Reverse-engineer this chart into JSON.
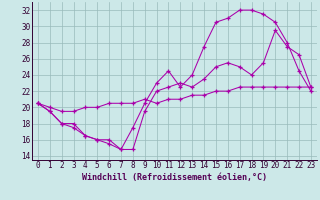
{
  "bg_color": "#cce8e8",
  "line_color": "#aa00aa",
  "xlim": [
    -0.5,
    23.5
  ],
  "ylim": [
    13.5,
    33.0
  ],
  "yticks": [
    14,
    16,
    18,
    20,
    22,
    24,
    26,
    28,
    30,
    32
  ],
  "xticks": [
    0,
    1,
    2,
    3,
    4,
    5,
    6,
    7,
    8,
    9,
    10,
    11,
    12,
    13,
    14,
    15,
    16,
    17,
    18,
    19,
    20,
    21,
    22,
    23
  ],
  "xlabel": "Windchill (Refroidissement éolien,°C)",
  "line1_x": [
    0,
    1,
    2,
    3,
    4,
    5,
    6,
    7,
    8,
    9,
    10,
    11,
    12,
    13,
    14,
    15,
    16,
    17,
    18,
    19,
    20,
    21,
    22,
    23
  ],
  "line1_y": [
    20.5,
    19.5,
    18.0,
    17.5,
    16.5,
    16.0,
    15.5,
    14.8,
    14.8,
    19.5,
    22.0,
    22.5,
    23.0,
    22.5,
    23.5,
    25.0,
    25.5,
    25.0,
    24.0,
    25.5,
    29.5,
    27.5,
    26.5,
    22.5
  ],
  "line2_x": [
    0,
    1,
    2,
    3,
    4,
    5,
    6,
    7,
    8,
    9,
    10,
    11,
    12,
    13,
    14,
    15,
    16,
    17,
    18,
    19,
    20,
    21,
    22,
    23
  ],
  "line2_y": [
    20.5,
    19.5,
    18.0,
    18.0,
    16.5,
    16.0,
    16.0,
    14.8,
    17.5,
    20.5,
    23.0,
    24.5,
    22.5,
    24.0,
    27.5,
    30.5,
    31.0,
    32.0,
    32.0,
    31.5,
    30.5,
    28.0,
    24.5,
    22.0
  ],
  "line3_x": [
    0,
    1,
    2,
    3,
    4,
    5,
    6,
    7,
    8,
    9,
    10,
    11,
    12,
    13,
    14,
    15,
    16,
    17,
    18,
    19,
    20,
    21,
    22,
    23
  ],
  "line3_y": [
    20.5,
    20.0,
    19.5,
    19.5,
    20.0,
    20.0,
    20.5,
    20.5,
    20.5,
    21.0,
    20.5,
    21.0,
    21.0,
    21.5,
    21.5,
    22.0,
    22.0,
    22.5,
    22.5,
    22.5,
    22.5,
    22.5,
    22.5,
    22.5
  ],
  "tick_fontsize": 5.5,
  "xlabel_fontsize": 6.0
}
